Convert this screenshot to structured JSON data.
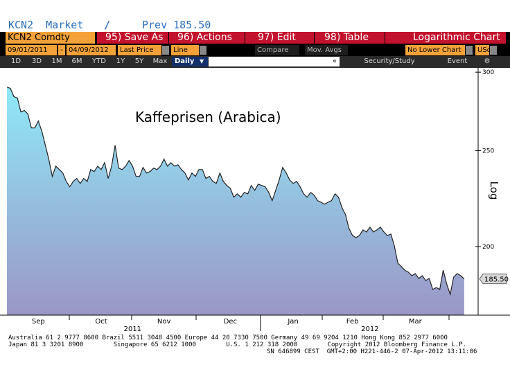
{
  "header": {
    "ticker": "KCN2  Market",
    "prev": "Prev 185.50"
  },
  "toolbar": {
    "security": "KCN2 Comdty",
    "buttons": [
      "95) Save As",
      "96) Actions",
      "97) Edit",
      "98) Table"
    ],
    "mode": "Logarithmic Chart"
  },
  "controls": {
    "start": "09/01/2011",
    "sep": "-",
    "end": "04/09/2012",
    "field": "Last Price",
    "style": "Line",
    "compare": "Compare",
    "mov_avgs": "Mov. Avgs",
    "lower": "No Lower Chart",
    "currency": "USd"
  },
  "periods": {
    "ranges": [
      "1D",
      "3D",
      "1M",
      "6M",
      "YTD",
      "1Y",
      "5Y",
      "Max"
    ],
    "frequency": "Daily",
    "collapse": "«",
    "study": "Security/Study",
    "event": "Event"
  },
  "chart_data": {
    "type": "line",
    "title": "Kaffeprisen (Arabica)",
    "y_axis_label": "Log",
    "log_scale": true,
    "grid": false,
    "color": "#222222",
    "area_colors": [
      "#8fe9f7",
      "#9b96c6"
    ],
    "values": [
      289.8,
      288.9,
      283.4,
      282.5,
      273.5,
      274.4,
      272.2,
      263.5,
      263.5,
      267.8,
      261.4,
      253.1,
      245.1,
      235.4,
      241.1,
      239.2,
      237.3,
      232.7,
      229.8,
      232.7,
      234.3,
      231.6,
      234.3,
      232.7,
      239.2,
      238.1,
      241.1,
      239.2,
      243.1,
      234.3,
      241.1,
      253.1,
      240.0,
      239.2,
      241.1,
      244.3,
      241.1,
      235.4,
      235.4,
      240.4,
      237.3,
      238.1,
      240.0,
      239.2,
      241.1,
      245.1,
      241.1,
      243.1,
      241.1,
      241.9,
      239.2,
      237.3,
      233.5,
      237.3,
      235.4,
      239.2,
      239.2,
      234.3,
      235.4,
      232.7,
      231.6,
      237.3,
      232.7,
      230.5,
      229.0,
      224.3,
      226.1,
      224.3,
      226.8,
      226.1,
      230.5,
      227.9,
      231.2,
      230.5,
      229.8,
      226.8,
      222.5,
      227.9,
      233.5,
      240.4,
      237.3,
      233.5,
      231.6,
      232.7,
      229.8,
      226.1,
      224.3,
      226.8,
      225.4,
      222.5,
      221.7,
      220.7,
      221.7,
      222.5,
      226.1,
      224.3,
      218.9,
      215.4,
      208.6,
      205.2,
      204.2,
      205.2,
      207.9,
      206.9,
      209.2,
      206.9,
      207.9,
      209.2,
      206.9,
      205.2,
      205.9,
      200.3,
      192.4,
      190.9,
      189.3,
      188.4,
      186.9,
      187.8,
      185.7,
      186.9,
      184.8,
      185.7,
      181.0,
      181.8,
      181.0,
      189.3,
      183.3,
      178.9,
      186.3,
      187.8,
      186.9,
      185.5
    ],
    "xlim": [
      0,
      135
    ],
    "xticks": [
      {
        "value": 9,
        "label": "Sep"
      },
      {
        "value": 27,
        "label": "Oct"
      },
      {
        "value": 45,
        "label": "Nov"
      },
      {
        "value": 64,
        "label": "Dec"
      },
      {
        "value": 82,
        "label": "Jan"
      },
      {
        "value": 99,
        "label": "Feb"
      },
      {
        "value": 117,
        "label": "Mar"
      }
    ],
    "years": [
      {
        "value": 36,
        "label": "2011"
      },
      {
        "value": 104,
        "label": "2012"
      }
    ],
    "ylim": [
      170.5,
      303
    ],
    "yticks": [
      200,
      250,
      300
    ],
    "last_price": {
      "value": 185.5,
      "label": "185.50"
    }
  },
  "footer": {
    "lines": [
      "Australia 61 2 9777 8600 Brazil 5511 3048 4500 Europe 44 20 7330 7500 Germany 49 69 9204 1210 Hong Kong 852 2977 6000",
      "Japan 81 3 3201 8900        Singapore 65 6212 1000        U.S. 1 212 318 2000        Copyright 2012 Bloomberg Finance L.P.",
      "SN 646899 CEST  GMT+2:00 H221-446-2 07-Apr-2012 13:11:06"
    ]
  }
}
